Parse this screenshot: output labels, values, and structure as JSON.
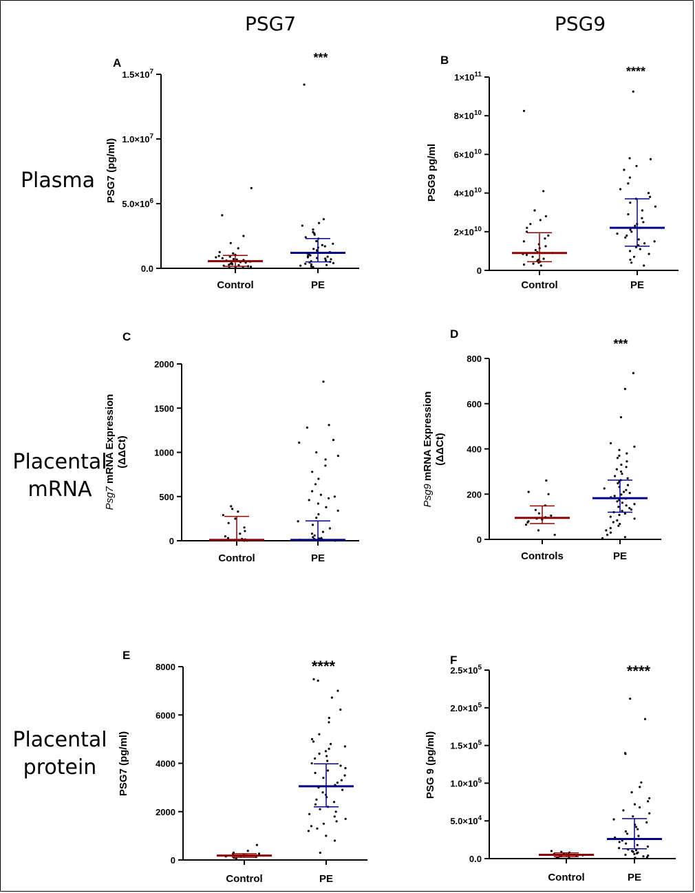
{
  "col_titles": [
    "PSG7",
    "PSG9"
  ],
  "row_labels": [
    {
      "lines": [
        "Plasma"
      ]
    },
    {
      "lines": [
        "Placental",
        "mRNA"
      ]
    },
    {
      "lines": [
        "Placental",
        "protein"
      ]
    }
  ],
  "colors": {
    "control": "#8b0000",
    "pe": "#00008b",
    "dots": "#000000"
  },
  "chart_data": [
    {
      "type": "scatter",
      "panel": "A",
      "significance": "***",
      "ylabel_html": "PSG7 (pg/ml)",
      "categories": [
        "Control",
        "PE"
      ],
      "ylim": [
        0,
        15000000
      ],
      "yticks": [
        {
          "v": 0,
          "t": "0.0"
        },
        {
          "v": 5000000,
          "t": "5.0×10",
          "sup": "6"
        },
        {
          "v": 10000000,
          "t": "1.0×10",
          "sup": "7"
        },
        {
          "v": 15000000,
          "t": "1.5×10",
          "sup": "7"
        }
      ],
      "summary": [
        {
          "median": 550000,
          "lo": 150000,
          "hi": 1000000
        },
        {
          "median": 1200000,
          "lo": 500000,
          "hi": 2300000
        }
      ],
      "points": [
        [
          6200000,
          4100000,
          2500000,
          1950000,
          1550000,
          1250000,
          1150000,
          1050000,
          950000,
          900000,
          850000,
          780000,
          720000,
          680000,
          640000,
          600000,
          560000,
          520000,
          480000,
          440000,
          400000,
          360000,
          320000,
          280000,
          240000,
          200000,
          160000,
          120000,
          90000,
          60000,
          40000
        ],
        [
          14200000,
          3800000,
          3500000,
          3300000,
          3000000,
          2800000,
          2700000,
          2600000,
          2400000,
          2300000,
          2100000,
          1900000,
          1800000,
          1700000,
          1600000,
          1500000,
          1400000,
          1300000,
          1250000,
          1150000,
          1100000,
          1000000,
          950000,
          900000,
          850000,
          800000,
          750000,
          700000,
          600000,
          550000,
          500000,
          450000,
          400000,
          350000,
          300000,
          250000,
          200000,
          150000,
          100000
        ]
      ]
    },
    {
      "type": "scatter",
      "panel": "B",
      "significance": "****",
      "ylabel_html": "PSG9 pg/ml",
      "categories": [
        "Control",
        "PE"
      ],
      "ylim": [
        0,
        100000000000
      ],
      "yticks": [
        {
          "v": 0,
          "t": "0"
        },
        {
          "v": 20000000000,
          "t": "2×10",
          "sup": "10"
        },
        {
          "v": 40000000000,
          "t": "4×10",
          "sup": "10"
        },
        {
          "v": 60000000000,
          "t": "6×10",
          "sup": "10"
        },
        {
          "v": 80000000000,
          "t": "8×10",
          "sup": "10"
        },
        {
          "v": 100000000000,
          "t": "1×10",
          "sup": "11"
        }
      ],
      "summary": [
        {
          "median": 9000000000,
          "lo": 4500000000,
          "hi": 19500000000
        },
        {
          "median": 22000000000,
          "lo": 12500000000,
          "hi": 37000000000
        }
      ],
      "points": [
        [
          82500000000,
          41000000000,
          31000000000,
          28000000000,
          26000000000,
          24000000000,
          22000000000,
          20000000000,
          18000000000,
          16500000000,
          15000000000,
          13500000000,
          12500000000,
          11500000000,
          10500000000,
          9500000000,
          9000000000,
          8500000000,
          8000000000,
          7000000000,
          6000000000,
          5500000000,
          5000000000,
          4500000000,
          4000000000,
          3500000000,
          3000000000,
          2500000000
        ],
        [
          92500000000,
          58000000000,
          57500000000,
          54000000000,
          52000000000,
          48000000000,
          45000000000,
          42000000000,
          40000000000,
          38000000000,
          37000000000,
          35000000000,
          33000000000,
          31000000000,
          29000000000,
          27000000000,
          25000000000,
          24000000000,
          23000000000,
          22000000000,
          21000000000,
          20000000000,
          19000000000,
          18000000000,
          17000000000,
          16000000000,
          15000000000,
          14000000000,
          13000000000,
          12000000000,
          11000000000,
          10000000000,
          8500000000,
          7000000000,
          5500000000,
          4000000000,
          2500000000
        ]
      ]
    },
    {
      "type": "scatter",
      "panel": "C",
      "significance": "",
      "ylabel_italic": "Psg7",
      "ylabel_rest": " mRNA Expression",
      "ylabel_line2": "(ΔΔCt)",
      "categories": [
        "Control",
        "PE"
      ],
      "ylim": [
        0,
        2000
      ],
      "yticks": [
        {
          "v": 0,
          "t": "0"
        },
        {
          "v": 500,
          "t": "500"
        },
        {
          "v": 1000,
          "t": "1000"
        },
        {
          "v": 1500,
          "t": "1500"
        },
        {
          "v": 2000,
          "t": "2000"
        }
      ],
      "summary": [
        {
          "median": 10,
          "lo": 2,
          "hi": 275
        },
        {
          "median": 10,
          "lo": 2,
          "hi": 225
        }
      ],
      "points": [
        [
          390,
          360,
          330,
          290,
          250,
          200,
          150,
          110,
          80,
          50,
          30,
          20,
          15,
          10,
          8,
          6,
          5,
          4,
          3,
          2,
          1
        ],
        [
          1800,
          1310,
          1280,
          1140,
          1110,
          1000,
          960,
          920,
          850,
          780,
          700,
          640,
          560,
          520,
          500,
          480,
          460,
          420,
          380,
          340,
          300,
          260,
          220,
          180,
          140,
          100,
          80,
          60,
          40,
          30,
          25,
          20,
          15,
          12,
          10,
          8,
          6,
          5,
          4,
          3,
          2,
          1
        ]
      ]
    },
    {
      "type": "scatter",
      "panel": "D",
      "significance": "***",
      "ylabel_italic": "Psg9",
      "ylabel_rest": " mRNA Expression",
      "ylabel_line2": "(ΔΔCt)",
      "categories": [
        "Controls",
        "PE"
      ],
      "ylim": [
        0,
        800
      ],
      "yticks": [
        {
          "v": 0,
          "t": "0"
        },
        {
          "v": 200,
          "t": "200"
        },
        {
          "v": 400,
          "t": "400"
        },
        {
          "v": 600,
          "t": "600"
        },
        {
          "v": 800,
          "t": "800"
        }
      ],
      "summary": [
        {
          "median": 95,
          "lo": 70,
          "hi": 148
        },
        {
          "median": 182,
          "lo": 120,
          "hi": 262
        }
      ],
      "points": [
        [
          260,
          210,
          200,
          150,
          130,
          115,
          105,
          98,
          92,
          88,
          80,
          75,
          65,
          40,
          20
        ],
        [
          735,
          665,
          540,
          425,
          410,
          395,
          380,
          370,
          360,
          345,
          330,
          320,
          310,
          300,
          290,
          280,
          270,
          262,
          255,
          248,
          240,
          232,
          225,
          218,
          210,
          205,
          198,
          192,
          186,
          180,
          174,
          168,
          162,
          156,
          150,
          144,
          138,
          132,
          126,
          120,
          114,
          108,
          100,
          92,
          84,
          76,
          68,
          60,
          50,
          40,
          30,
          20,
          10,
          5
        ]
      ]
    },
    {
      "type": "scatter",
      "panel": "E",
      "significance": "****",
      "ylabel_html": "PSG7 (pg/ml)",
      "categories": [
        "Control",
        "PE"
      ],
      "ylim": [
        0,
        8000
      ],
      "yticks": [
        {
          "v": 0,
          "t": "0"
        },
        {
          "v": 2000,
          "t": "2000"
        },
        {
          "v": 4000,
          "t": "4000"
        },
        {
          "v": 6000,
          "t": "6000"
        },
        {
          "v": 8000,
          "t": "8000"
        }
      ],
      "summary": [
        {
          "median": 180,
          "lo": 110,
          "hi": 260
        },
        {
          "median": 3050,
          "lo": 2200,
          "hi": 3980
        }
      ],
      "points": [
        [
          620,
          380,
          300,
          260,
          230,
          210,
          190,
          170,
          150,
          120,
          90,
          60
        ],
        [
          7480,
          7420,
          7000,
          6720,
          6220,
          5880,
          5700,
          5200,
          5000,
          4900,
          4800,
          4700,
          4600,
          4500,
          4400,
          4300,
          4200,
          4100,
          4000,
          3900,
          3800,
          3700,
          3600,
          3500,
          3400,
          3300,
          3200,
          3100,
          3000,
          2900,
          2800,
          2700,
          2600,
          2500,
          2400,
          2300,
          2200,
          2100,
          2000,
          1900,
          1800,
          1700,
          1600,
          1500,
          1400,
          1300,
          1200,
          1000,
          800,
          300
        ]
      ]
    },
    {
      "type": "scatter",
      "panel": "F",
      "significance": "****",
      "ylabel_html": "PSG 9 (pg/ml)",
      "categories": [
        "Control",
        "PE"
      ],
      "ylim": [
        0,
        250000
      ],
      "yticks": [
        {
          "v": 0,
          "t": "0.0"
        },
        {
          "v": 50000,
          "t": "5.0×10",
          "sup": "4"
        },
        {
          "v": 100000,
          "t": "1.0×10",
          "sup": "5"
        },
        {
          "v": 150000,
          "t": "1.5×10",
          "sup": "5"
        },
        {
          "v": 200000,
          "t": "2.0×10",
          "sup": "5"
        },
        {
          "v": 250000,
          "t": "2.5×10",
          "sup": "5"
        }
      ],
      "summary": [
        {
          "median": 5000,
          "lo": 2500,
          "hi": 7500
        },
        {
          "median": 26000,
          "lo": 13000,
          "hi": 53000
        }
      ],
      "points": [
        [
          10000,
          9000,
          8000,
          7000,
          6000,
          5500,
          5000,
          4500,
          4000,
          3500,
          3000,
          2500,
          2000,
          1500,
          1000
        ],
        [
          212000,
          185000,
          140000,
          139000,
          101000,
          95000,
          88000,
          80000,
          76000,
          72000,
          68000,
          64000,
          60000,
          56000,
          52000,
          48000,
          45000,
          42000,
          39000,
          36000,
          33000,
          30000,
          28000,
          26000,
          24000,
          22000,
          20000,
          18000,
          16000,
          14000,
          12000,
          11000,
          10000,
          9000,
          8000,
          7000,
          6000,
          5000,
          4000,
          3000,
          2000,
          1000
        ]
      ]
    }
  ]
}
